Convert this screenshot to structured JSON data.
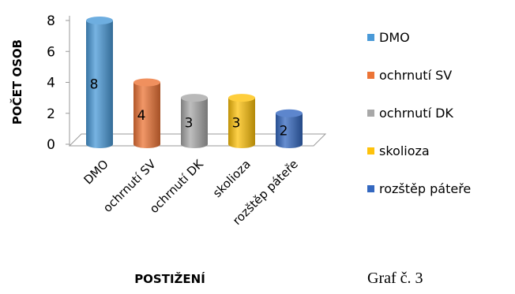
{
  "chart_data": {
    "type": "bar",
    "style": "3d-cylinder",
    "categories": [
      "DMO",
      "ochrnutí SV",
      "ochrnutí DK",
      "skolioza",
      "rozštěp páteře"
    ],
    "values": [
      8,
      4,
      3,
      3,
      2
    ],
    "colors": [
      "#4a9ad8",
      "#ec7436",
      "#a8a8a8",
      "#fec20c",
      "#3468c0"
    ],
    "xlabel": "POSTIŽENÍ",
    "ylabel": "POČET OSOB",
    "ylim": [
      0,
      8
    ],
    "yticks": [
      0,
      2,
      4,
      6,
      8
    ],
    "grid": false,
    "legend": "right",
    "data_labels": true
  },
  "caption": "Graf č. 3"
}
